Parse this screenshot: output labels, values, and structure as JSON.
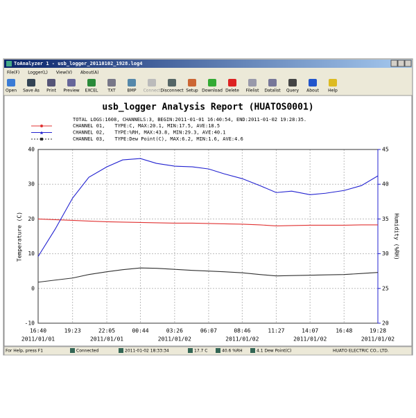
{
  "window": {
    "title": "ToAnalyzer 1 - usb_logger_20110102_1928.log4",
    "menu": [
      "File(F)",
      "Logger(L)",
      "View(V)",
      "About(A)"
    ],
    "toolbar": [
      "Open",
      "Save As",
      "Print",
      "Preview",
      "EXCEL",
      "TXT",
      "BMP",
      "Connect",
      "Disconnect",
      "Setup",
      "Download",
      "Delete",
      "Filelist",
      "Datalist",
      "Query",
      "About",
      "Help"
    ],
    "status": [
      "For Help, press F1",
      "Connected",
      "2011-01-02 18:33:34",
      "17.7 C",
      "40.6 %RH",
      "4.1 Dew Point(C)",
      "HUATO ELECTRIC CO., LTD."
    ]
  },
  "chart_data": {
    "type": "line",
    "title": "usb_logger Analysis Report (HUATOS0001)",
    "summary": "TOTAL LOGS:1608, CHANNELS:3, BEGIN:2011-01-01 16:40:54, END:2011-01-02 19:28:35.",
    "ylabel": "Temperature (C)",
    "y2label": "Humidity (%RH)",
    "x": [
      0,
      80,
      163,
      240,
      325,
      400,
      484,
      560,
      646,
      730,
      807,
      880,
      966,
      1050,
      1127,
      1200,
      1287,
      1360,
      1448,
      1530,
      1608
    ],
    "xlim": [
      0,
      1608
    ],
    "xticks": [
      {
        "value": 0,
        "label": "16:40"
      },
      {
        "value": 163,
        "label": "19:23"
      },
      {
        "value": 325,
        "label": "22:05"
      },
      {
        "value": 484,
        "label": "00:44"
      },
      {
        "value": 646,
        "label": "03:26"
      },
      {
        "value": 807,
        "label": "06:07"
      },
      {
        "value": 966,
        "label": "08:46"
      },
      {
        "value": 1127,
        "label": "11:27"
      },
      {
        "value": 1287,
        "label": "14:07"
      },
      {
        "value": 1448,
        "label": "16:48"
      },
      {
        "value": 1608,
        "label": "19:28"
      }
    ],
    "xtick_dates": [
      {
        "value": 0,
        "label": "2011/01/01"
      },
      {
        "value": 325,
        "label": "2011/01/01"
      },
      {
        "value": 646,
        "label": "2011/01/02"
      },
      {
        "value": 966,
        "label": "2011/01/02"
      },
      {
        "value": 1287,
        "label": "2011/01/02"
      },
      {
        "value": 1608,
        "label": "2011/01/02"
      }
    ],
    "ylim": [
      -10,
      40
    ],
    "yticks": [
      -10,
      0,
      10,
      20,
      30,
      40
    ],
    "y2lim": [
      20,
      45
    ],
    "y2ticks": [
      20,
      25,
      30,
      35,
      40,
      45
    ],
    "grid": true,
    "series": [
      {
        "name": "CHANNEL 01,",
        "info": "TYPE:C,      MAX:20.1,    MIN:17.5,     AVE:18.5",
        "color": "#e03030",
        "marker": "circle",
        "values": [
          20.0,
          19.8,
          19.6,
          19.4,
          19.2,
          19.1,
          19.0,
          18.9,
          18.8,
          18.8,
          18.7,
          18.6,
          18.5,
          18.3,
          18.0,
          18.1,
          18.2,
          18.2,
          18.2,
          18.3,
          18.3
        ]
      },
      {
        "name": "CHANNEL 02,",
        "info": "TYPE:%RH,     MAX:43.8,    MIN:29.3,     AVE:40.1",
        "color": "#2020d0",
        "marker": "triangle",
        "axis": "y2",
        "values": [
          29.6,
          33.5,
          38.0,
          41.0,
          42.5,
          43.5,
          43.7,
          43.0,
          42.6,
          42.5,
          42.2,
          41.5,
          40.8,
          39.8,
          38.8,
          39.0,
          38.5,
          38.7,
          39.1,
          39.8,
          41.2
        ]
      },
      {
        "name": "CHANNEL 03,",
        "info": "TYPE:Dew Point(C),    MAX:6.2,     MIN:1.6,     AVE:4.6",
        "color": "#303030",
        "marker": "square",
        "dash": true,
        "values": [
          1.8,
          2.4,
          3.0,
          4.0,
          4.8,
          5.4,
          5.9,
          5.8,
          5.5,
          5.2,
          5.0,
          4.8,
          4.5,
          4.0,
          3.6,
          3.7,
          3.8,
          3.9,
          4.0,
          4.3,
          4.6
        ]
      }
    ]
  }
}
